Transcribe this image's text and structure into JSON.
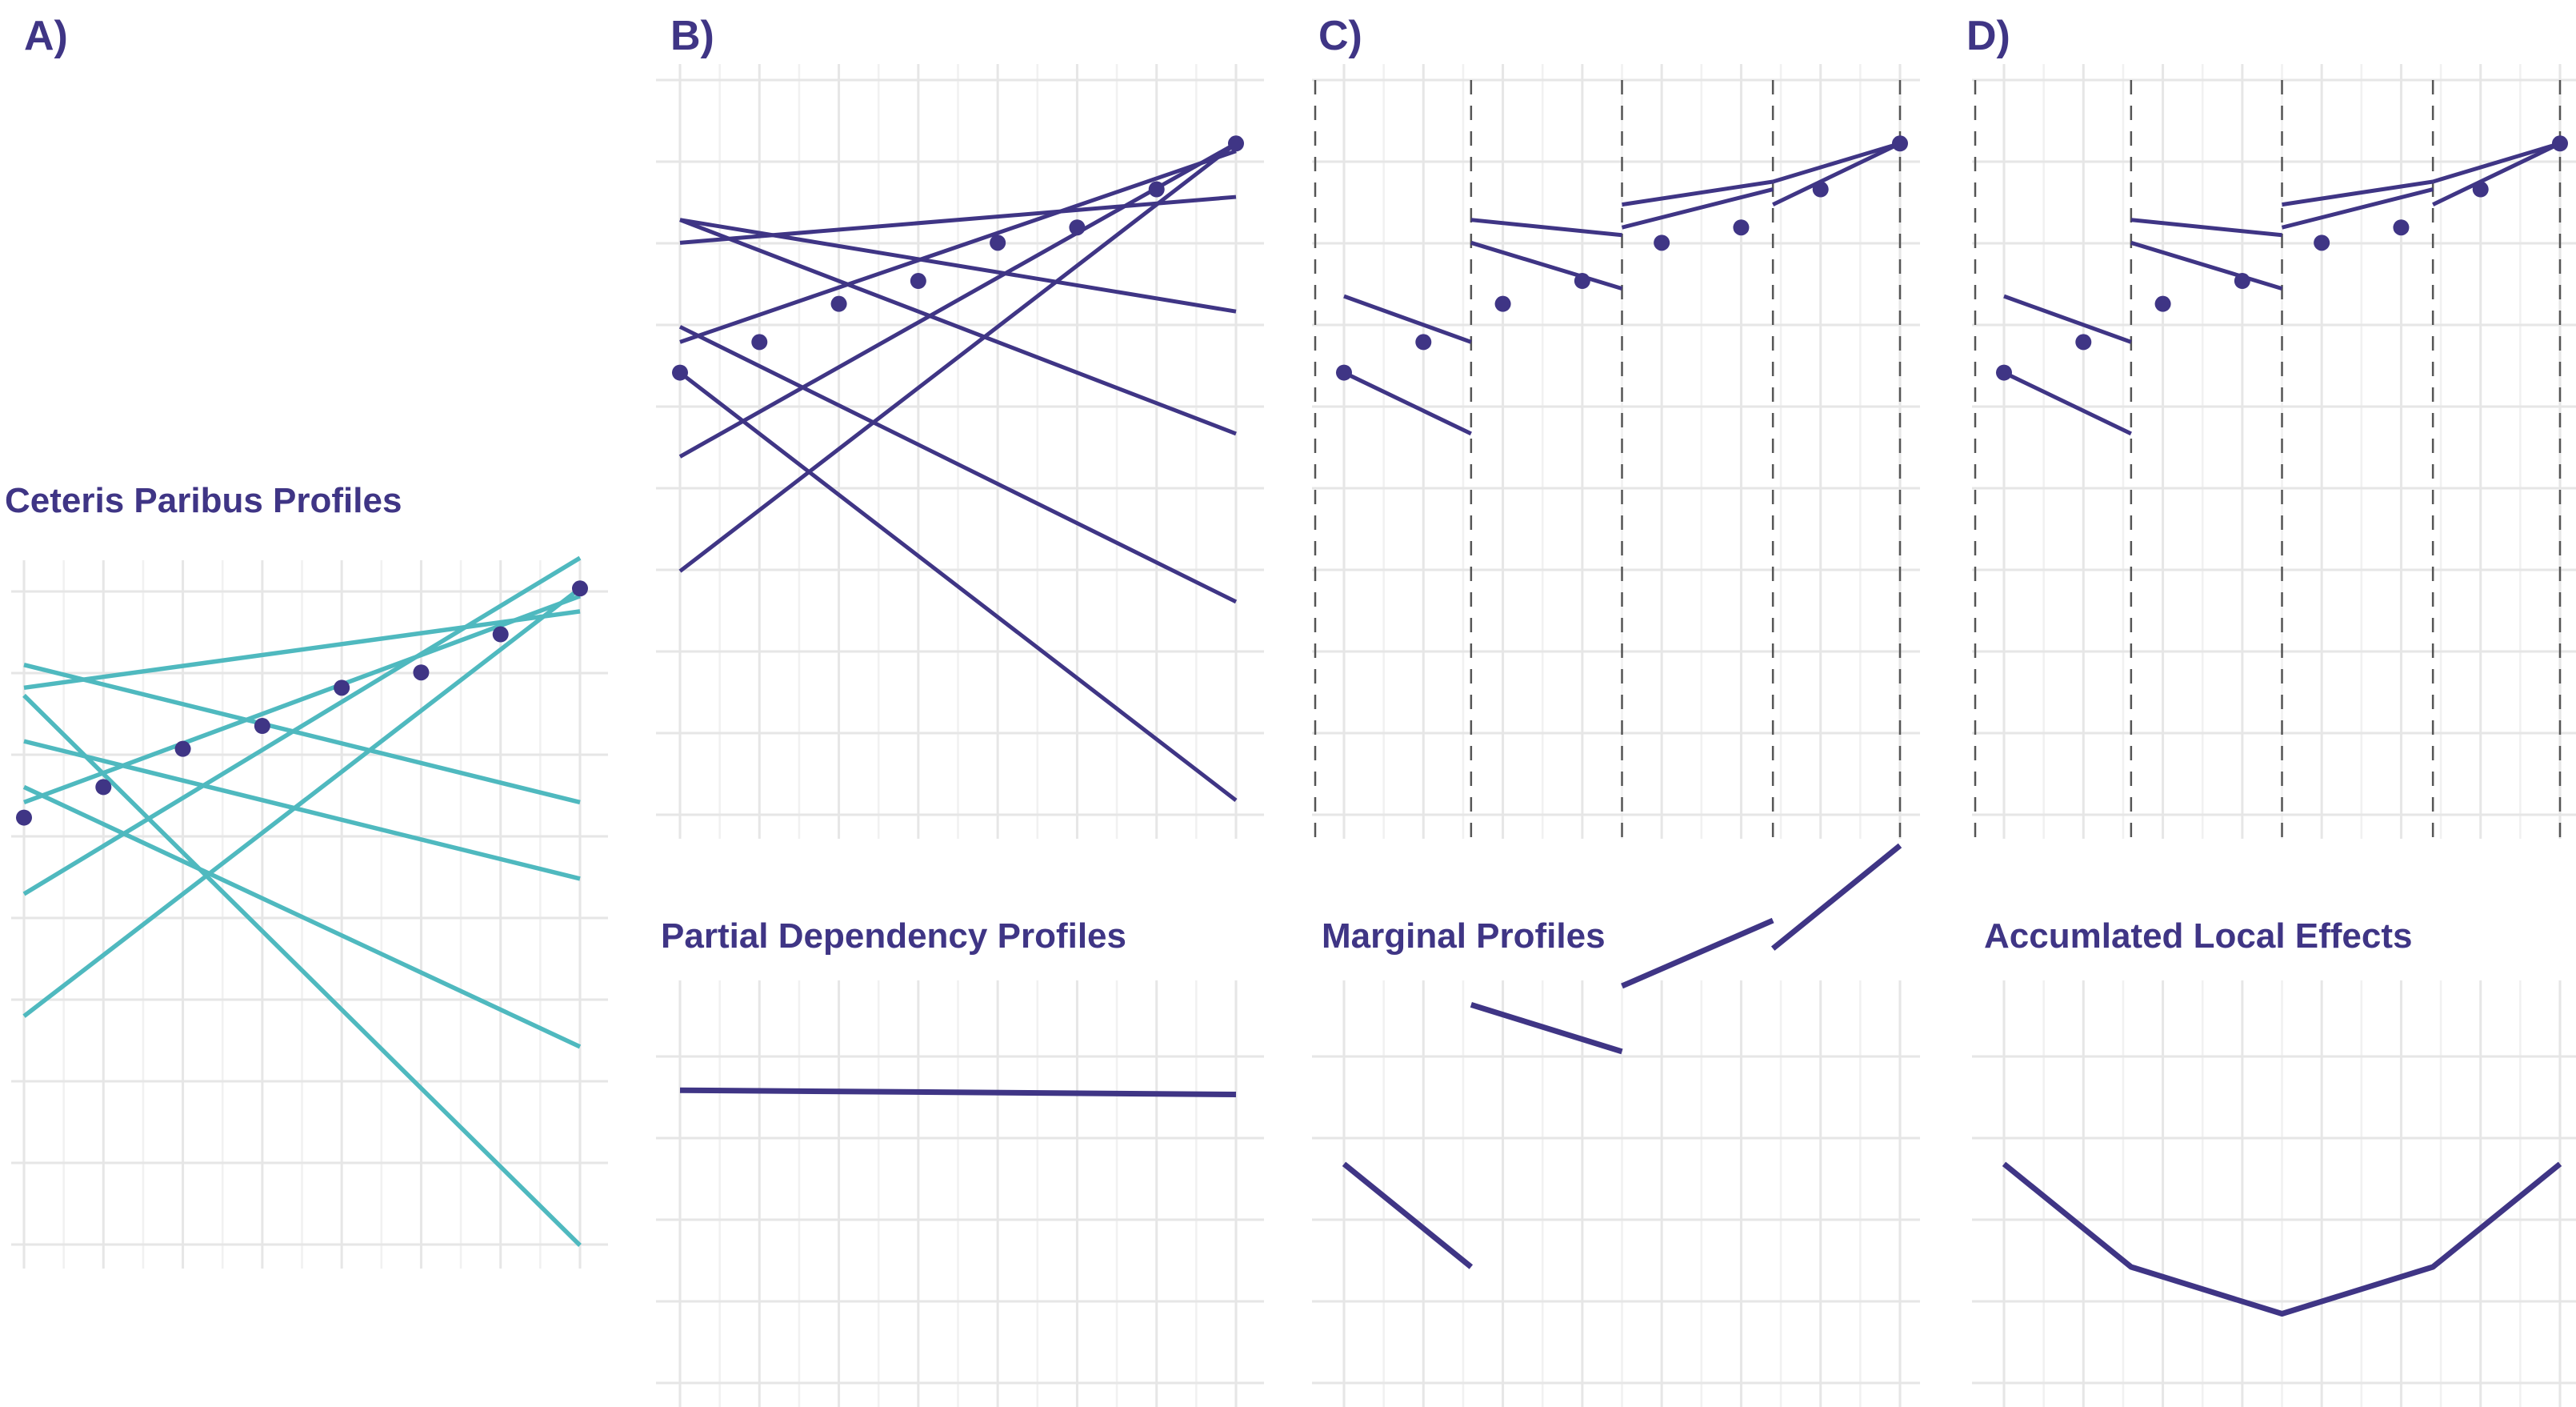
{
  "colors": {
    "profile_teal": "#4fb9bf",
    "accent_purple": "#3f3585",
    "grid": "#e6e6e6"
  },
  "panels": [
    {
      "letter": "A)",
      "title": "Ceteris Paribus Profiles"
    },
    {
      "letter": "B)",
      "title": "Partial Dependency Profiles"
    },
    {
      "letter": "C)",
      "title": "Marginal Profiles"
    },
    {
      "letter": "D)",
      "title": "Accumlated Local Effects"
    }
  ],
  "chart_data": [
    {
      "id": "A",
      "type": "line",
      "title": "Ceteris Paribus Profiles",
      "xlim": [
        0,
        7
      ],
      "ylim": [
        0,
        9.2
      ],
      "series": [
        {
          "x": [
            0,
            7
          ],
          "values": [
            7.2,
            0
          ]
        },
        {
          "x": [
            0,
            7
          ],
          "values": [
            6.0,
            2.6
          ]
        },
        {
          "x": [
            0,
            7
          ],
          "values": [
            7.6,
            5.8
          ]
        },
        {
          "x": [
            0,
            7
          ],
          "values": [
            6.6,
            4.8
          ]
        },
        {
          "x": [
            0,
            7
          ],
          "values": [
            7.3,
            8.3
          ]
        },
        {
          "x": [
            0,
            7
          ],
          "values": [
            3.0,
            8.6
          ]
        },
        {
          "x": [
            0,
            7
          ],
          "values": [
            4.6,
            9.0
          ]
        },
        {
          "x": [
            0,
            7
          ],
          "values": [
            5.8,
            8.5
          ]
        }
      ],
      "points": {
        "x": [
          0,
          1,
          2,
          3,
          4,
          5,
          6,
          7
        ],
        "values": [
          5.6,
          6.0,
          6.5,
          6.8,
          7.3,
          7.5,
          8.0,
          8.6
        ]
      }
    },
    {
      "id": "B",
      "type": "line",
      "title": "",
      "xlim": [
        0,
        7
      ],
      "ylim": [
        0,
        9.2
      ],
      "series": [
        {
          "x": [
            0,
            7
          ],
          "values": [
            5.6,
            0
          ]
        },
        {
          "x": [
            0,
            7
          ],
          "values": [
            6.2,
            2.6
          ]
        },
        {
          "x": [
            0,
            7
          ],
          "values": [
            7.6,
            4.8
          ]
        },
        {
          "x": [
            0,
            7
          ],
          "values": [
            7.6,
            6.4
          ]
        },
        {
          "x": [
            0,
            7
          ],
          "values": [
            7.3,
            7.9
          ]
        },
        {
          "x": [
            0,
            7
          ],
          "values": [
            6.0,
            8.5
          ]
        },
        {
          "x": [
            0,
            7
          ],
          "values": [
            4.5,
            8.6
          ]
        },
        {
          "x": [
            0,
            7
          ],
          "values": [
            3.0,
            8.6
          ]
        }
      ],
      "points": {
        "x": [
          0,
          1,
          2,
          3,
          4,
          5,
          6,
          7
        ],
        "values": [
          5.6,
          6.0,
          6.5,
          6.8,
          7.3,
          7.5,
          8.0,
          8.6
        ]
      }
    },
    {
      "id": "C",
      "type": "line",
      "title": "",
      "xlim": [
        0,
        7
      ],
      "ylim": [
        0,
        9.2
      ],
      "cuts": [
        1.6,
        3.5,
        5.4
      ],
      "series": [
        {
          "x": [
            0,
            1.6
          ],
          "values": [
            5.6,
            4.8
          ]
        },
        {
          "x": [
            0,
            1.6
          ],
          "values": [
            6.6,
            6.0
          ]
        },
        {
          "x": [
            1.6,
            3.5
          ],
          "values": [
            7.3,
            6.7
          ]
        },
        {
          "x": [
            1.6,
            3.5
          ],
          "values": [
            7.6,
            7.4
          ]
        },
        {
          "x": [
            3.5,
            5.4
          ],
          "values": [
            7.5,
            8.0
          ]
        },
        {
          "x": [
            3.5,
            5.4
          ],
          "values": [
            7.8,
            8.1
          ]
        },
        {
          "x": [
            5.4,
            7
          ],
          "values": [
            7.8,
            8.6
          ]
        },
        {
          "x": [
            5.4,
            7
          ],
          "values": [
            8.1,
            8.6
          ]
        }
      ],
      "points": {
        "x": [
          0,
          1,
          2,
          3,
          4,
          5,
          6,
          7
        ],
        "values": [
          5.6,
          6.0,
          6.5,
          6.8,
          7.3,
          7.5,
          8.0,
          8.6
        ]
      }
    },
    {
      "id": "D",
      "type": "line",
      "title": "",
      "xlim": [
        0,
        7
      ],
      "ylim": [
        0,
        9.2
      ],
      "cuts": [
        1.6,
        3.5,
        5.4
      ],
      "series": [
        {
          "x": [
            0,
            1.6
          ],
          "values": [
            5.6,
            4.8
          ]
        },
        {
          "x": [
            0,
            1.6
          ],
          "values": [
            6.6,
            6.0
          ]
        },
        {
          "x": [
            1.6,
            3.5
          ],
          "values": [
            7.3,
            6.7
          ]
        },
        {
          "x": [
            1.6,
            3.5
          ],
          "values": [
            7.6,
            7.4
          ]
        },
        {
          "x": [
            3.5,
            5.4
          ],
          "values": [
            7.5,
            8.0
          ]
        },
        {
          "x": [
            3.5,
            5.4
          ],
          "values": [
            7.8,
            8.1
          ]
        },
        {
          "x": [
            5.4,
            7
          ],
          "values": [
            7.8,
            8.6
          ]
        },
        {
          "x": [
            5.4,
            7
          ],
          "values": [
            8.1,
            8.6
          ]
        }
      ],
      "points": {
        "x": [
          0,
          1,
          2,
          3,
          4,
          5,
          6,
          7
        ],
        "values": [
          5.6,
          6.0,
          6.5,
          6.8,
          7.3,
          7.5,
          8.0,
          8.6
        ]
      }
    },
    {
      "id": "B-bottom",
      "type": "line",
      "title": "Partial Dependency Profiles",
      "xlim": [
        0,
        7
      ],
      "ylim": [
        0,
        5
      ],
      "series": [
        {
          "x": [
            0,
            7
          ],
          "values": [
            2.9,
            2.86
          ]
        }
      ]
    },
    {
      "id": "C-bottom",
      "type": "line",
      "title": "Marginal Profiles",
      "xlim": [
        0,
        7
      ],
      "ylim": [
        0,
        5
      ],
      "series": [
        {
          "x": [
            0,
            1.6
          ],
          "values": [
            2.1,
            1.0
          ]
        },
        {
          "x": [
            1.6,
            3.5
          ],
          "values": [
            3.8,
            3.3
          ]
        },
        {
          "x": [
            3.5,
            5.4
          ],
          "values": [
            4.0,
            4.7
          ]
        },
        {
          "x": [
            5.4,
            7
          ],
          "values": [
            4.4,
            5.5
          ]
        }
      ]
    },
    {
      "id": "D-bottom",
      "type": "line",
      "title": "Accumlated Local Effects",
      "xlim": [
        0,
        7
      ],
      "ylim": [
        0,
        5
      ],
      "series": [
        {
          "x": [
            0,
            1.6,
            3.5,
            5.4,
            7
          ],
          "values": [
            2.1,
            1.0,
            0.5,
            1.0,
            2.1
          ]
        }
      ]
    }
  ]
}
